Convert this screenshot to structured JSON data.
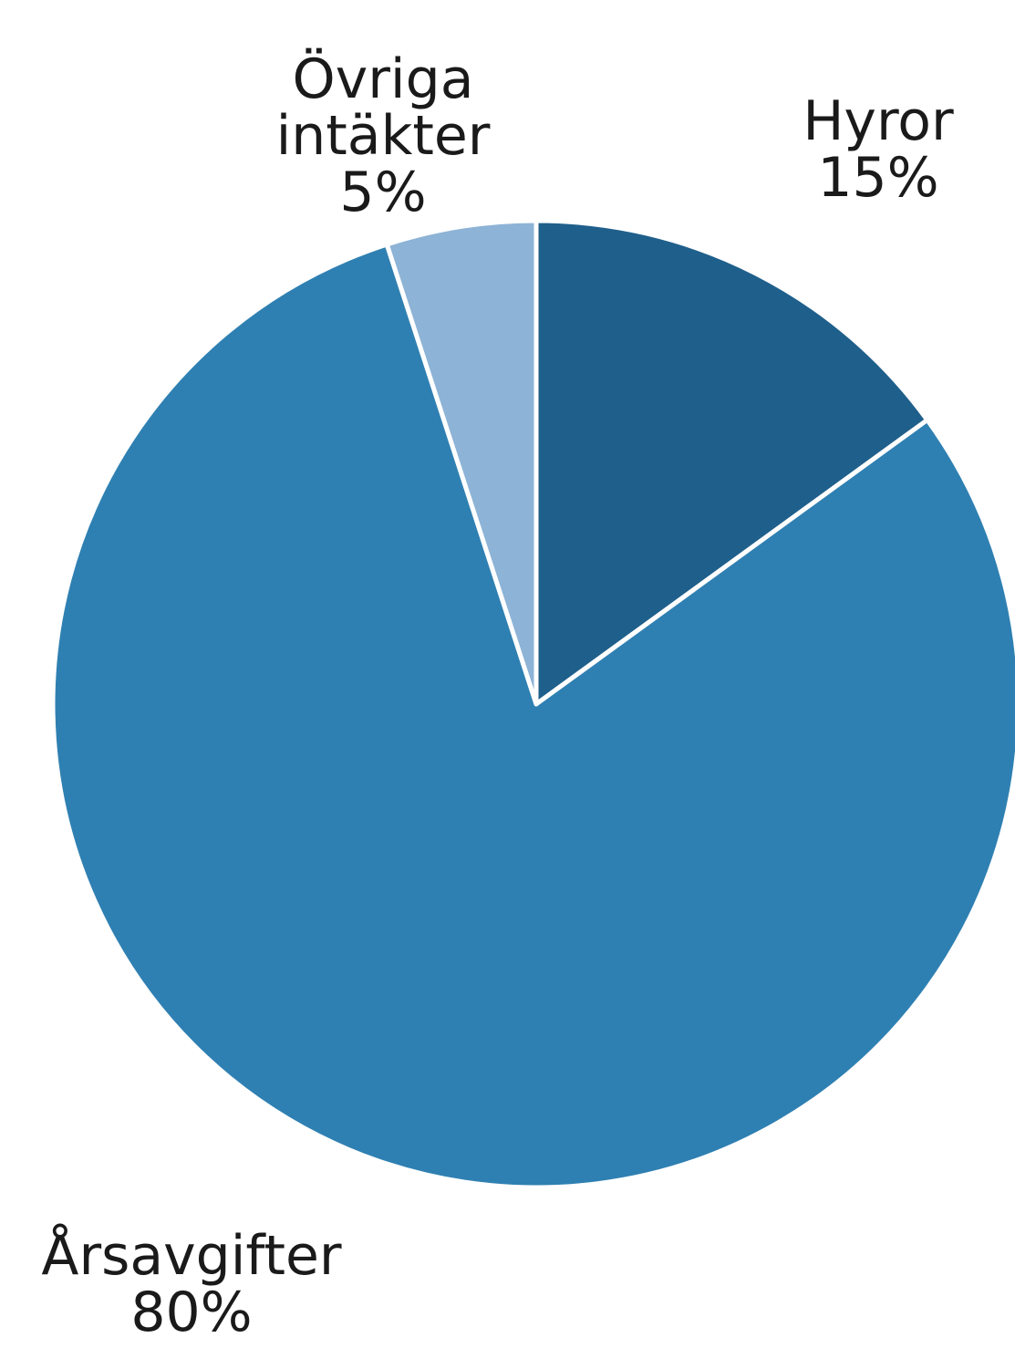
{
  "chart_data": {
    "type": "pie",
    "slices": [
      {
        "key": "hyror",
        "label": "Hyror",
        "value_label": "15%",
        "value": 15,
        "color": "#1f5f8b"
      },
      {
        "key": "arsavgifter",
        "label": "Årsavgifter",
        "value_label": "80%",
        "value": 80,
        "color": "#2f80b2"
      },
      {
        "key": "ovriga",
        "label_lines": [
          "Övriga",
          "intäkter"
        ],
        "value_label": "5%",
        "value": 5,
        "color": "#8db3d6"
      }
    ],
    "separator_color": "#ffffff"
  }
}
